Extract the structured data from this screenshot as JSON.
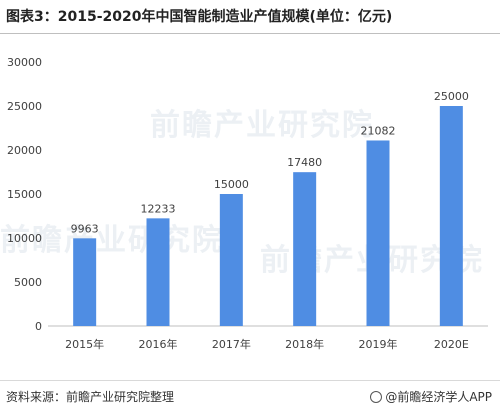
{
  "title": "图表3：2015-2020年中国智能制造业产值规模(单位：亿元)",
  "source": "资料来源：前瞻产业研究院整理",
  "brand": "@前瞻经济学人APP",
  "watermark": "前瞻产业研究院",
  "colors": {
    "bar": "#4f8de3",
    "axis": "#bfbfbf",
    "text": "#404040"
  },
  "chart_data": {
    "type": "bar",
    "categories": [
      "2015年",
      "2016年",
      "2017年",
      "2018年",
      "2019年",
      "2020E"
    ],
    "values": [
      9963,
      12233,
      15000,
      17480,
      21082,
      25000
    ],
    "data_labels": [
      "9963",
      "12233",
      "15000",
      "17480",
      "21082",
      "25000"
    ],
    "ylim": [
      0,
      30000
    ],
    "yticks": [
      0,
      5000,
      10000,
      15000,
      20000,
      25000,
      30000
    ],
    "ytick_labels": [
      "0",
      "5000",
      "10000",
      "15000",
      "20000",
      "25000",
      "30000"
    ],
    "grid": false,
    "legend": "none"
  }
}
